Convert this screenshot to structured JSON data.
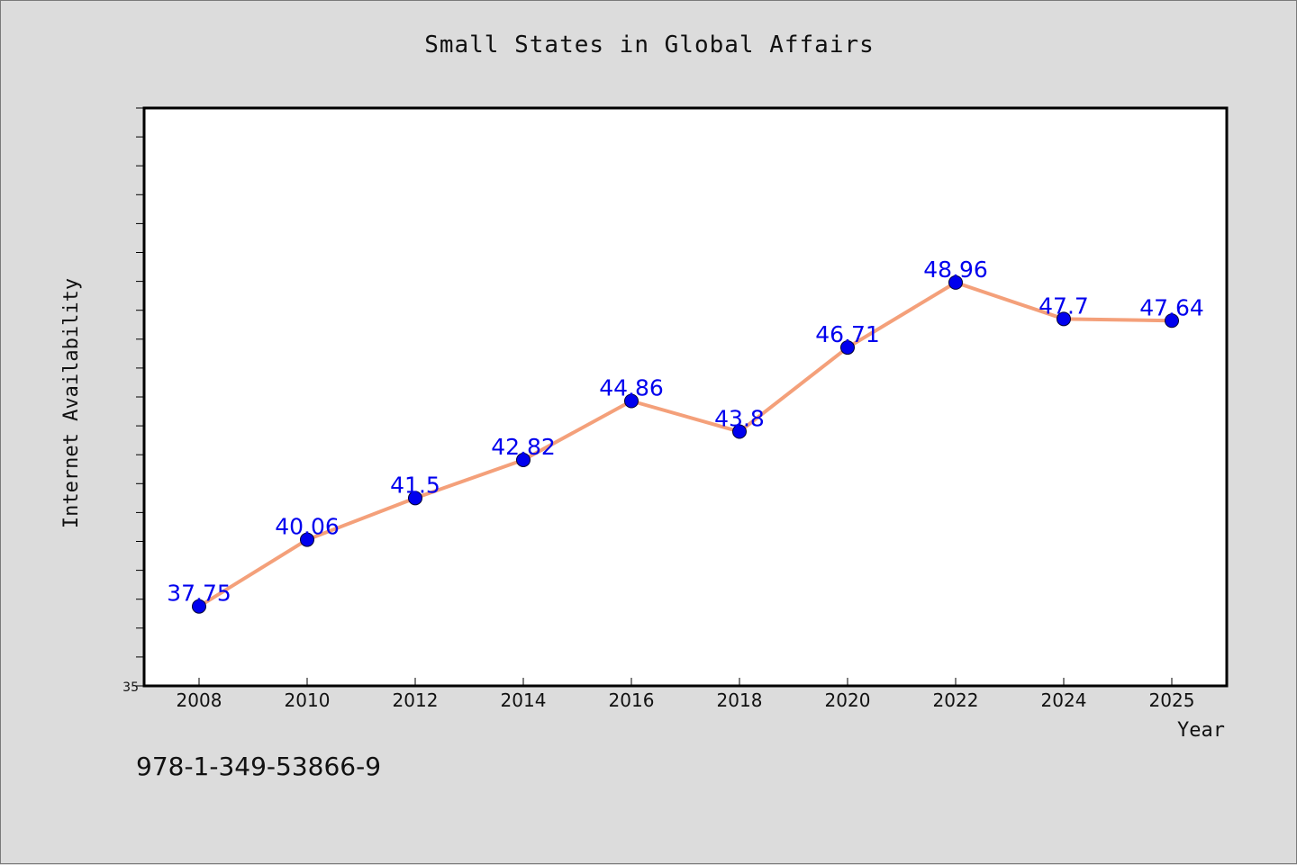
{
  "chart_data": {
    "type": "line",
    "title": "Small States in Global Affairs",
    "xlabel": "Year",
    "ylabel": "Internet Availability",
    "categories": [
      "2008",
      "2010",
      "2012",
      "2014",
      "2016",
      "2018",
      "2020",
      "2022",
      "2024",
      "2025"
    ],
    "series": [
      {
        "values": [
          37.75,
          40.06,
          41.5,
          42.82,
          44.86,
          43.8,
          46.71,
          48.96,
          47.7,
          47.64
        ],
        "data_labels": [
          "37.75",
          "40.06",
          "41.5",
          "42.82",
          "44.86",
          "43.8",
          "46.71",
          "48.96",
          "47.7",
          "47.64"
        ]
      }
    ],
    "ylim": [
      35,
      55
    ],
    "y_tick_labels": [
      "35"
    ],
    "grid": false,
    "line_color": "#f4a07a",
    "marker_color": "#0000ee",
    "label_color": "#0000ee"
  },
  "footer": {
    "isbn": "978-1-349-53866-9"
  }
}
